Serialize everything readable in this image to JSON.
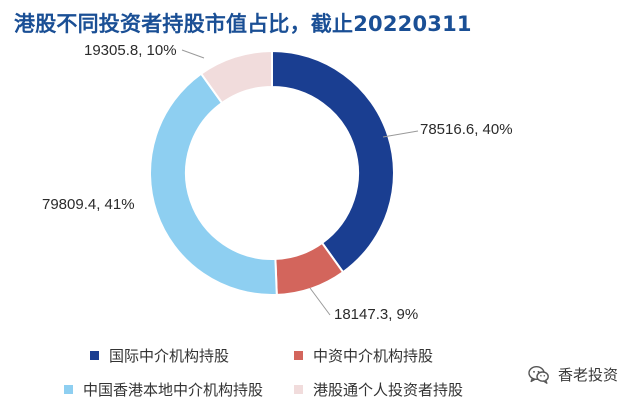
{
  "chart_data": {
    "type": "pie",
    "style": "donut",
    "title": "港股不同投资者持股市值占比，截止20220311",
    "categories": [
      "国际中介机构持股",
      "中资中介机构持股",
      "中国香港本地中介机构持股",
      "港股通个人投资者持股"
    ],
    "values": [
      78516.6,
      18147.3,
      79809.4,
      19305.8
    ],
    "percents": [
      40,
      9,
      41,
      10
    ],
    "labels": [
      "78516.6, 40%",
      "18147.3, 9%",
      "79809.4, 41%",
      "19305.8, 10%"
    ],
    "colors": [
      "#1a3e91",
      "#d3655c",
      "#8ecff1",
      "#f1dcdc"
    ],
    "legend_position": "bottom"
  },
  "watermark": {
    "text": "香老投资",
    "icon": "wechat-icon"
  }
}
